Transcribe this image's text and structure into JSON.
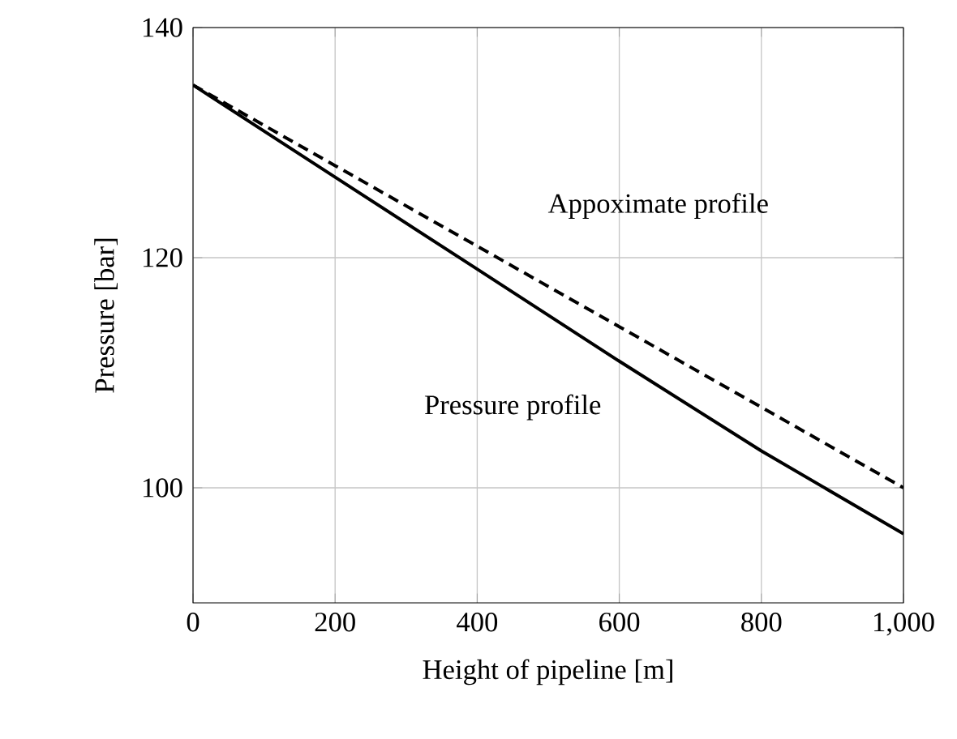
{
  "chart_data": {
    "type": "line",
    "xlabel": "Height of pipeline [m]",
    "ylabel": "Pressure [bar]",
    "x": [
      0,
      200,
      400,
      600,
      800,
      1000
    ],
    "series": [
      {
        "name": "Pressure profile",
        "color": "#000000",
        "line_style": "solid",
        "values": [
          135,
          127,
          119,
          111,
          103.2,
          96
        ]
      },
      {
        "name": "Appoximate profile",
        "color": "#000000",
        "line_style": "dashed",
        "values": [
          135,
          128,
          121,
          114,
          107,
          100
        ]
      }
    ],
    "xlim": [
      0,
      1000
    ],
    "ylim": [
      90,
      140
    ],
    "xticks": [
      0,
      200,
      400,
      600,
      800,
      {
        "value": 1000,
        "label": "1,000"
      }
    ],
    "yticks": [
      100,
      120,
      140
    ],
    "grid": true,
    "marker": "none"
  }
}
